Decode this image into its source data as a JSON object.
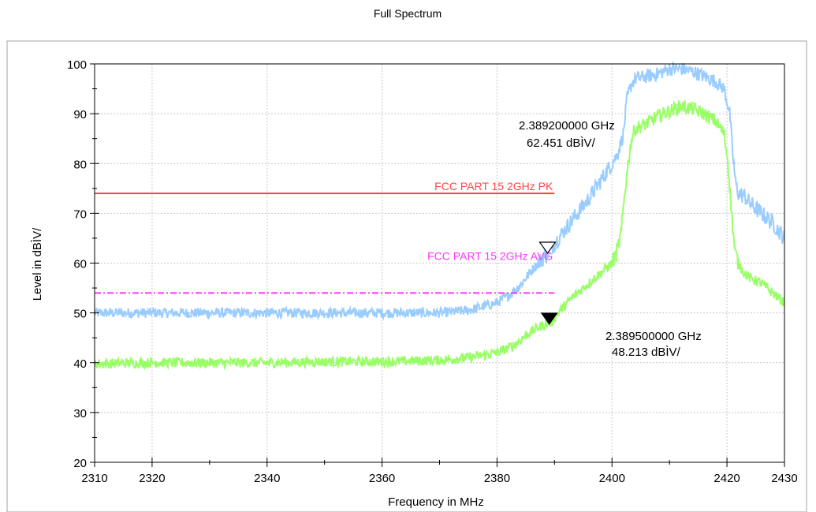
{
  "chart_data": {
    "type": "line",
    "title": "Full Spectrum",
    "xlabel": "Frequency in MHz",
    "ylabel": "Level in dBÌV/",
    "xlim": [
      2310,
      2430
    ],
    "ylim": [
      20,
      100
    ],
    "x_ticks": [
      2310,
      2320,
      2340,
      2360,
      2380,
      2400,
      2420,
      2430
    ],
    "y_ticks": [
      20,
      30,
      40,
      50,
      60,
      70,
      80,
      90,
      100
    ],
    "grid": true,
    "series": [
      {
        "color": "#99ccff",
        "x": [
          2310,
          2320,
          2330,
          2340,
          2350,
          2360,
          2370,
          2375,
          2380,
          2382,
          2384,
          2386,
          2388,
          2389.2,
          2390,
          2392,
          2394,
          2396,
          2398,
          2400,
          2401,
          2402,
          2402.6,
          2403.4,
          2404,
          2406,
          2408,
          2410,
          2412,
          2414,
          2416,
          2418,
          2419.5,
          2420.5,
          2421,
          2421.5,
          2422,
          2423,
          2424,
          2426,
          2428,
          2430
        ],
        "y": [
          50,
          50,
          50,
          50,
          50,
          50,
          50,
          50.5,
          52,
          53.5,
          55.5,
          58.5,
          61,
          62.5,
          64,
          67,
          70,
          73,
          76.5,
          80,
          82,
          86,
          93,
          96,
          97,
          97.5,
          98,
          99,
          99,
          98.5,
          97.5,
          96.5,
          95,
          90,
          82,
          76,
          74,
          73.5,
          72,
          70,
          68,
          65
        ]
      },
      {
        "color": "#99ff66",
        "x": [
          2310,
          2320,
          2330,
          2340,
          2350,
          2360,
          2370,
          2375,
          2380,
          2383,
          2385,
          2387,
          2389.5,
          2391,
          2393,
          2395,
          2397,
          2399,
          2400,
          2400.8,
          2401.6,
          2402.2,
          2402.8,
          2403.4,
          2404,
          2406,
          2408,
          2410,
          2412,
          2414,
          2416,
          2418,
          2419.5,
          2420.2,
          2420.8,
          2421.4,
          2422,
          2423,
          2424,
          2426,
          2428,
          2430
        ],
        "y": [
          39.8,
          40,
          40,
          40,
          40.2,
          40.2,
          40.5,
          41,
          42,
          43.5,
          45.5,
          47,
          48.2,
          50.5,
          53,
          55,
          57,
          59,
          60,
          62,
          66,
          74,
          80,
          85,
          87,
          88,
          89.5,
          90.5,
          91.5,
          91,
          90,
          88.5,
          86,
          80,
          70,
          62,
          60,
          58,
          57,
          56,
          54,
          52
        ]
      }
    ],
    "limits": [
      {
        "label": "FCC PART 15 2GHz   PK",
        "value": 74,
        "x_start": 2310,
        "x_end": 2390,
        "color": "#ff4444",
        "style": "solid"
      },
      {
        "label": "FCC PART 15 2GHz   AVG",
        "value": 54,
        "x_start": 2310,
        "x_end": 2390,
        "color": "#ff33ff",
        "style": "dash-dot"
      }
    ],
    "markers": [
      {
        "x": 2389.2,
        "y": 62.451,
        "symbol": "open-triangle-down",
        "freq": "2.389200000 GHz",
        "level": "62.451 dBÌV/"
      },
      {
        "x": 2389.5,
        "y": 48.213,
        "symbol": "filled-triangle-down",
        "freq": "2.389500000 GHz",
        "level": "48.213 dBÌV/"
      }
    ]
  }
}
